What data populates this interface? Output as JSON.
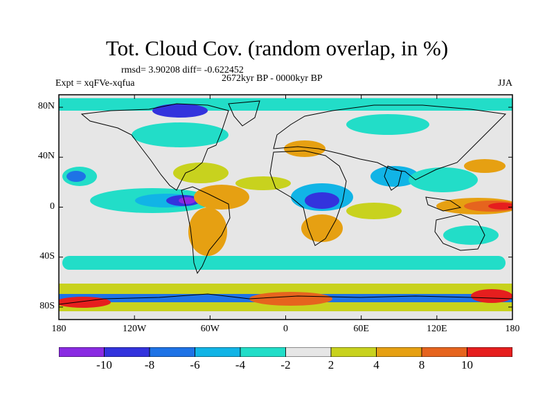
{
  "title": "Tot. Cloud Cov. (random overlap, in %)",
  "stats": "rmsd= 3.90208 diff= -0.622452",
  "period": "2672kyr BP - 0000kyr BP",
  "experiment": "Expt = xqFVe-xqfua",
  "season": "JJA",
  "map": {
    "projection": "cylindrical equidistant",
    "lon_range": [
      -180,
      180
    ],
    "lat_range": [
      -90,
      90
    ],
    "x_ticks": [
      {
        "lon": -180,
        "label": "180"
      },
      {
        "lon": -120,
        "label": "120W"
      },
      {
        "lon": -60,
        "label": "60W"
      },
      {
        "lon": 0,
        "label": "0"
      },
      {
        "lon": 60,
        "label": "60E"
      },
      {
        "lon": 120,
        "label": "120E"
      },
      {
        "lon": 180,
        "label": "180"
      }
    ],
    "y_ticks": [
      {
        "lat": 80,
        "label": "80N"
      },
      {
        "lat": 40,
        "label": "40N"
      },
      {
        "lat": 0,
        "label": "0"
      },
      {
        "lat": -40,
        "label": "40S"
      },
      {
        "lat": -80,
        "label": "80S"
      }
    ],
    "background_color": "#e6e6e6",
    "coastline_color": "#000000"
  },
  "colorbar": {
    "levels": [
      -10,
      -8,
      -6,
      -4,
      -2,
      2,
      4,
      8,
      10
    ],
    "labels": [
      "-10",
      "-8",
      "-6",
      "-4",
      "-2",
      "2",
      "4",
      "8",
      "10"
    ],
    "colors": [
      "#8a2be2",
      "#3333dd",
      "#1e73e6",
      "#11b4e6",
      "#22ddc8",
      "#e6e6e6",
      "#c8d21e",
      "#e6a012",
      "#e6641e",
      "#e61e1e"
    ]
  }
}
